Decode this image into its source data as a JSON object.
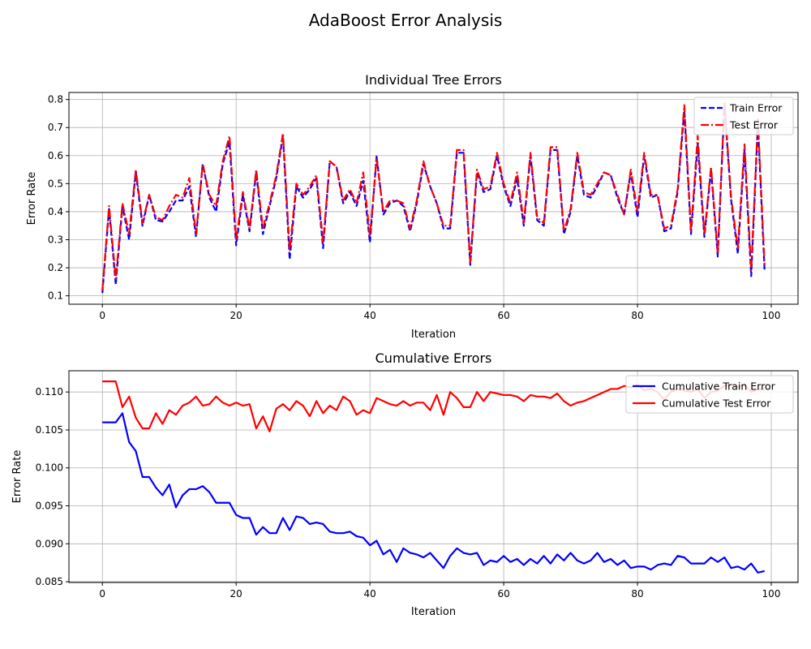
{
  "figure": {
    "title": "AdaBoost Error Analysis"
  },
  "colors": {
    "train": "#0000ff",
    "test": "#ff0000",
    "grid": "#b0b0b0"
  },
  "chart_data": [
    {
      "type": "line",
      "title": "Individual Tree Errors",
      "xlabel": "Iteration",
      "ylabel": "Error Rate",
      "xlim": [
        -5,
        104
      ],
      "ylim": [
        0.07,
        0.825
      ],
      "xticks": [
        0,
        20,
        40,
        60,
        80,
        100
      ],
      "yticks": [
        0.1,
        0.2,
        0.3,
        0.4,
        0.5,
        0.6,
        0.7,
        0.8
      ],
      "ytick_labels": [
        "0.1",
        "0.2",
        "0.3",
        "0.4",
        "0.5",
        "0.6",
        "0.7",
        "0.8"
      ],
      "grid": true,
      "legend_position": "top-right",
      "x": "range(0,100)",
      "series": [
        {
          "name": "Train Error",
          "style": "dashed",
          "color": "#0000ff",
          "values": [
            0.11,
            0.41,
            0.14,
            0.42,
            0.3,
            0.54,
            0.35,
            0.46,
            0.37,
            0.365,
            0.4,
            0.44,
            0.44,
            0.49,
            0.31,
            0.57,
            0.45,
            0.4,
            0.57,
            0.65,
            0.28,
            0.46,
            0.33,
            0.54,
            0.32,
            0.42,
            0.52,
            0.67,
            0.23,
            0.49,
            0.45,
            0.48,
            0.52,
            0.27,
            0.58,
            0.56,
            0.43,
            0.47,
            0.42,
            0.51,
            0.29,
            0.6,
            0.39,
            0.43,
            0.44,
            0.42,
            0.33,
            0.43,
            0.57,
            0.49,
            0.43,
            0.34,
            0.34,
            0.61,
            0.61,
            0.21,
            0.54,
            0.47,
            0.48,
            0.6,
            0.49,
            0.42,
            0.52,
            0.35,
            0.6,
            0.37,
            0.35,
            0.62,
            0.62,
            0.32,
            0.4,
            0.6,
            0.46,
            0.45,
            0.49,
            0.54,
            0.53,
            0.45,
            0.39,
            0.54,
            0.38,
            0.6,
            0.45,
            0.46,
            0.33,
            0.34,
            0.47,
            0.76,
            0.32,
            0.64,
            0.31,
            0.55,
            0.24,
            0.78,
            0.44,
            0.25,
            0.62,
            0.17,
            0.71,
            0.19
          ]
        },
        {
          "name": "Test Error",
          "style": "dashdot",
          "color": "#ff0000",
          "values": [
            0.12,
            0.42,
            0.16,
            0.43,
            0.32,
            0.55,
            0.36,
            0.46,
            0.38,
            0.37,
            0.42,
            0.46,
            0.45,
            0.52,
            0.32,
            0.57,
            0.46,
            0.42,
            0.58,
            0.67,
            0.3,
            0.47,
            0.34,
            0.55,
            0.34,
            0.43,
            0.53,
            0.68,
            0.26,
            0.5,
            0.46,
            0.49,
            0.53,
            0.29,
            0.58,
            0.56,
            0.44,
            0.48,
            0.43,
            0.54,
            0.31,
            0.59,
            0.4,
            0.44,
            0.44,
            0.43,
            0.34,
            0.44,
            0.58,
            0.49,
            0.43,
            0.35,
            0.35,
            0.62,
            0.62,
            0.22,
            0.55,
            0.48,
            0.49,
            0.61,
            0.5,
            0.43,
            0.54,
            0.36,
            0.61,
            0.38,
            0.36,
            0.63,
            0.63,
            0.33,
            0.41,
            0.61,
            0.47,
            0.46,
            0.5,
            0.54,
            0.53,
            0.46,
            0.39,
            0.55,
            0.4,
            0.61,
            0.46,
            0.46,
            0.34,
            0.35,
            0.48,
            0.78,
            0.33,
            0.67,
            0.32,
            0.56,
            0.25,
            0.79,
            0.45,
            0.27,
            0.64,
            0.19,
            0.73,
            0.21
          ]
        }
      ]
    },
    {
      "type": "line",
      "title": "Cumulative Errors",
      "xlabel": "Iteration",
      "ylabel": "Error Rate",
      "xlim": [
        -5,
        104
      ],
      "ylim": [
        0.0849,
        0.1128
      ],
      "xticks": [
        0,
        20,
        40,
        60,
        80,
        100
      ],
      "yticks": [
        0.085,
        0.09,
        0.095,
        0.1,
        0.105,
        0.11
      ],
      "ytick_labels": [
        "0.085",
        "0.090",
        "0.095",
        "0.100",
        "0.105",
        "0.110"
      ],
      "grid": true,
      "legend_position": "top-right",
      "x": "range(0,100)",
      "series": [
        {
          "name": "Cumulative Train Error",
          "style": "solid",
          "color": "#0000ff",
          "values": [
            0.106,
            0.106,
            0.106,
            0.1072,
            0.1034,
            0.1022,
            0.0988,
            0.0988,
            0.0974,
            0.0964,
            0.0978,
            0.0948,
            0.0964,
            0.0972,
            0.0972,
            0.0976,
            0.0968,
            0.0954,
            0.0954,
            0.0954,
            0.0938,
            0.0934,
            0.0934,
            0.0912,
            0.0922,
            0.0914,
            0.0914,
            0.0934,
            0.0918,
            0.0936,
            0.0934,
            0.0926,
            0.0928,
            0.0926,
            0.0916,
            0.0914,
            0.0914,
            0.0916,
            0.091,
            0.0908,
            0.0898,
            0.0904,
            0.0886,
            0.0892,
            0.0876,
            0.0894,
            0.0888,
            0.0886,
            0.0882,
            0.0888,
            0.0878,
            0.0868,
            0.0884,
            0.0894,
            0.0888,
            0.0886,
            0.0888,
            0.0872,
            0.0878,
            0.0876,
            0.0884,
            0.0876,
            0.088,
            0.0872,
            0.088,
            0.0874,
            0.0884,
            0.0874,
            0.0886,
            0.0878,
            0.0888,
            0.0878,
            0.0874,
            0.0878,
            0.0888,
            0.0876,
            0.088,
            0.0872,
            0.0878,
            0.0868,
            0.087,
            0.087,
            0.0866,
            0.0872,
            0.0874,
            0.0872,
            0.0884,
            0.0882,
            0.0874,
            0.0874,
            0.0874,
            0.0882,
            0.0876,
            0.0882,
            0.0868,
            0.087,
            0.0866,
            0.0874,
            0.0862,
            0.0864
          ]
        },
        {
          "name": "Cumulative Test Error",
          "style": "solid",
          "color": "#ff0000",
          "values": [
            0.1114,
            0.1114,
            0.1114,
            0.108,
            0.1094,
            0.1066,
            0.1052,
            0.1052,
            0.1072,
            0.1058,
            0.1076,
            0.107,
            0.1082,
            0.1086,
            0.1094,
            0.1082,
            0.1084,
            0.1094,
            0.1086,
            0.1082,
            0.1086,
            0.1082,
            0.1084,
            0.1052,
            0.1068,
            0.1048,
            0.1078,
            0.1084,
            0.1076,
            0.1088,
            0.1082,
            0.1068,
            0.1088,
            0.1072,
            0.1082,
            0.1076,
            0.1094,
            0.1088,
            0.107,
            0.1076,
            0.1072,
            0.1092,
            0.1088,
            0.1084,
            0.1082,
            0.1088,
            0.1082,
            0.1086,
            0.1086,
            0.1076,
            0.1096,
            0.107,
            0.11,
            0.1092,
            0.108,
            0.108,
            0.11,
            0.1088,
            0.11,
            0.1098,
            0.1096,
            0.1096,
            0.1094,
            0.1088,
            0.1096,
            0.1094,
            0.1094,
            0.1092,
            0.1098,
            0.1088,
            0.1082,
            0.1086,
            0.1088,
            0.1092,
            0.1096,
            0.11,
            0.1104,
            0.1104,
            0.1108,
            0.1106,
            0.111,
            0.1102,
            0.1104,
            0.11,
            0.109,
            0.11,
            0.1104,
            0.1102,
            0.11,
            0.1104,
            0.1092,
            0.11,
            0.1102,
            0.1108,
            0.111,
            0.1106,
            0.111,
            0.11,
            0.1104,
            0.1104
          ]
        }
      ]
    }
  ]
}
